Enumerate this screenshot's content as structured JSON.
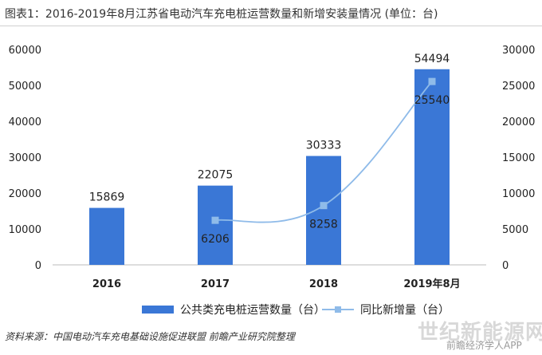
{
  "title": "图表1：2016-2019年8月江苏省电动汽车充电桩运营数量和新增安装量情况 (单位：台)",
  "source": "资料来源：中国电动汽车充电基础设施促进联盟 前瞻产业研究院整理",
  "watermark": "世纪新能源网",
  "watermark_app": "前瞻经济学人APP",
  "colors": {
    "bar": "#3a77d6",
    "line": "#8fbbe9"
  },
  "chart_data": {
    "type": "bar",
    "categories": [
      "2016",
      "2017",
      "2018",
      "2019年8月"
    ],
    "series": [
      {
        "name": "公共类充电桩运营数量（台）",
        "type": "bar",
        "axis": "left",
        "values": [
          15869,
          22075,
          30333,
          54494
        ]
      },
      {
        "name": "同比新增量（台）",
        "type": "line",
        "axis": "right",
        "values": [
          null,
          6206,
          8258,
          25540
        ]
      }
    ],
    "ylim_left": [
      0,
      60000
    ],
    "yticks_left": [
      "0",
      "10000",
      "20000",
      "30000",
      "40000",
      "50000",
      "60000"
    ],
    "ylim_right": [
      0,
      30000
    ],
    "yticks_right": [
      "0",
      "5000",
      "10000",
      "15000",
      "20000",
      "25000",
      "30000"
    ],
    "legend_position": "bottom",
    "grid": false
  }
}
